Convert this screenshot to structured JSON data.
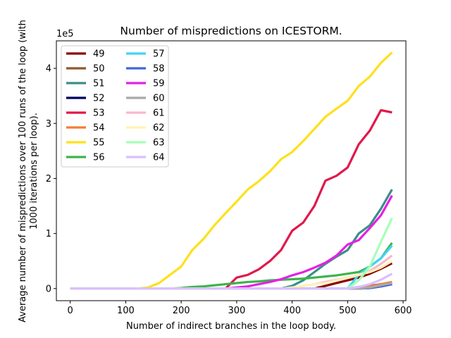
{
  "chart_data": {
    "type": "line",
    "title": "Number of mispredictions on ICESTORM.",
    "xlabel": "Number of indirect branches in the loop body.",
    "ylabel_lines": [
      "Average number of mispredictions over 100 runs of the loop (with",
      "1000 iterations per loop)."
    ],
    "y_offset_text": "1e5",
    "xlim": [
      -25,
      605
    ],
    "ylim": [
      -0.22,
      4.5
    ],
    "xticks": [
      0,
      100,
      200,
      300,
      400,
      500,
      600
    ],
    "xtick_labels": [
      "0",
      "100",
      "200",
      "300",
      "400",
      "500",
      "600"
    ],
    "yticks": [
      0,
      1,
      2,
      3,
      4
    ],
    "ytick_labels": [
      "0",
      "1",
      "2",
      "3",
      "4"
    ],
    "grid": false,
    "legend_position": "top-left",
    "x": [
      0,
      20,
      40,
      60,
      80,
      100,
      120,
      140,
      160,
      180,
      200,
      220,
      240,
      260,
      280,
      300,
      320,
      340,
      360,
      380,
      400,
      420,
      440,
      460,
      480,
      500,
      520,
      540,
      560,
      580
    ],
    "series": [
      {
        "name": "49",
        "color": "#8b0000",
        "values": [
          0,
          0,
          0,
          0,
          0,
          0,
          0,
          0,
          0,
          0,
          0,
          0,
          0,
          0,
          0,
          0,
          0,
          0,
          0,
          0,
          0,
          0,
          0,
          0.05,
          0.1,
          0.15,
          0.2,
          0.27,
          0.36,
          0.46
        ]
      },
      {
        "name": "50",
        "color": "#8b5a2b",
        "values": [
          0,
          0,
          0,
          0,
          0,
          0,
          0,
          0,
          0,
          0,
          0,
          0,
          0,
          0,
          0,
          0,
          0,
          0,
          0,
          0,
          0,
          0,
          0,
          0,
          0,
          0,
          0.03,
          0.05,
          0.08,
          0.1
        ]
      },
      {
        "name": "51",
        "color": "#3a8f88",
        "values": [
          0,
          0,
          0,
          0,
          0,
          0,
          0,
          0,
          0,
          0,
          0,
          0,
          0,
          0,
          0,
          0,
          0,
          0,
          0,
          0,
          0.05,
          0.15,
          0.3,
          0.45,
          0.58,
          0.7,
          1.0,
          1.15,
          1.45,
          1.8
        ]
      },
      {
        "name": "52",
        "color": "#000060",
        "values": [
          0,
          0,
          0,
          0,
          0,
          0,
          0,
          0,
          0,
          0,
          0,
          0,
          0,
          0,
          0,
          0,
          0,
          0,
          0,
          0,
          0,
          0,
          0,
          0,
          0,
          0,
          0,
          0.01,
          0.04,
          0.08
        ]
      },
      {
        "name": "53",
        "color": "#e0194b",
        "values": [
          0,
          0,
          0,
          0,
          0,
          0,
          0,
          0,
          0,
          0,
          0,
          0,
          0,
          0,
          0,
          0.2,
          0.25,
          0.35,
          0.5,
          0.7,
          1.05,
          1.2,
          1.5,
          1.96,
          2.05,
          2.2,
          2.62,
          2.87,
          3.24,
          3.2
        ]
      },
      {
        "name": "54",
        "color": "#f07f34",
        "values": [
          0,
          0,
          0,
          0,
          0,
          0,
          0,
          0,
          0,
          0,
          0,
          0,
          0,
          0,
          0,
          0,
          0,
          0,
          0,
          0,
          0,
          0,
          0,
          0,
          0,
          0,
          0,
          0.04,
          0.08,
          0.12
        ]
      },
      {
        "name": "55",
        "color": "#ffe01a",
        "values": [
          0,
          0,
          0,
          0,
          0,
          0,
          0,
          0.02,
          0.1,
          0.25,
          0.4,
          0.7,
          0.9,
          1.15,
          1.37,
          1.58,
          1.8,
          1.95,
          2.13,
          2.35,
          2.48,
          2.68,
          2.9,
          3.12,
          3.27,
          3.41,
          3.68,
          3.85,
          4.1,
          4.29
        ]
      },
      {
        "name": "56",
        "color": "#3cb44b",
        "values": [
          0,
          0,
          0,
          0,
          0,
          0,
          0,
          0,
          0,
          0,
          0.01,
          0.03,
          0.04,
          0.06,
          0.08,
          0.1,
          0.12,
          0.13,
          0.15,
          0.16,
          0.17,
          0.18,
          0.2,
          0.22,
          0.24,
          0.27,
          0.3,
          0.4,
          0.55,
          0.83
        ]
      },
      {
        "name": "57",
        "color": "#42d4f4",
        "values": [
          0,
          0,
          0,
          0,
          0,
          0,
          0,
          0,
          0,
          0,
          0,
          0,
          0,
          0,
          0,
          0,
          0,
          0,
          0,
          0,
          0,
          0,
          0,
          0,
          0,
          0,
          0.25,
          0.4,
          0.55,
          0.78
        ]
      },
      {
        "name": "58",
        "color": "#4363d8",
        "values": [
          0,
          0,
          0,
          0,
          0,
          0,
          0,
          0,
          0,
          0,
          0,
          0,
          0,
          0,
          0,
          0,
          0,
          0,
          0,
          0,
          0,
          0,
          0,
          0,
          0,
          0,
          0,
          0.01,
          0.04,
          0.08
        ]
      },
      {
        "name": "59",
        "color": "#e520e5",
        "values": [
          0,
          0,
          0,
          0,
          0,
          0,
          0,
          0,
          0,
          0,
          0,
          0,
          0,
          0,
          0,
          0.02,
          0.04,
          0.08,
          0.12,
          0.17,
          0.24,
          0.3,
          0.38,
          0.47,
          0.6,
          0.8,
          0.88,
          1.1,
          1.33,
          1.69
        ]
      },
      {
        "name": "60",
        "color": "#a9a9a9",
        "values": [
          0,
          0,
          0,
          0,
          0,
          0,
          0,
          0,
          0,
          0,
          0,
          0,
          0,
          0,
          0,
          0,
          0,
          0,
          0,
          0,
          0,
          0,
          0,
          0,
          0,
          0,
          0,
          0.02,
          0.06,
          0.1
        ]
      },
      {
        "name": "61",
        "color": "#f9b6cf",
        "values": [
          0,
          0,
          0,
          0,
          0,
          0,
          0,
          0,
          0,
          0,
          0,
          0,
          0,
          0,
          0,
          0,
          0,
          0,
          0,
          0,
          0,
          0.05,
          0.08,
          0.12,
          0.16,
          0.2,
          0.25,
          0.32,
          0.45,
          0.6
        ]
      },
      {
        "name": "62",
        "color": "#fff3b5",
        "values": [
          0,
          0,
          0,
          0,
          0,
          0,
          0,
          0,
          0,
          0,
          0,
          0,
          0,
          0,
          0,
          0,
          0,
          0,
          0,
          0,
          0.02,
          0.05,
          0.08,
          0.1,
          0.15,
          0.2,
          0.25,
          0.3,
          0.38,
          0.5
        ]
      },
      {
        "name": "63",
        "color": "#a6ffb8",
        "values": [
          0,
          0,
          0,
          0,
          0,
          0,
          0,
          0,
          0,
          0,
          0,
          0,
          0,
          0,
          0,
          0,
          0,
          0,
          0,
          0,
          0,
          0,
          0,
          0,
          0,
          0,
          0.15,
          0.4,
          0.85,
          1.28
        ]
      },
      {
        "name": "64",
        "color": "#dcbeff",
        "values": [
          0,
          0,
          0,
          0,
          0,
          0,
          0,
          0,
          0,
          0,
          0,
          0,
          0,
          0,
          0,
          0,
          0,
          0,
          0,
          0,
          0,
          0,
          0,
          0,
          0,
          0,
          0.03,
          0.08,
          0.16,
          0.27
        ]
      }
    ]
  }
}
